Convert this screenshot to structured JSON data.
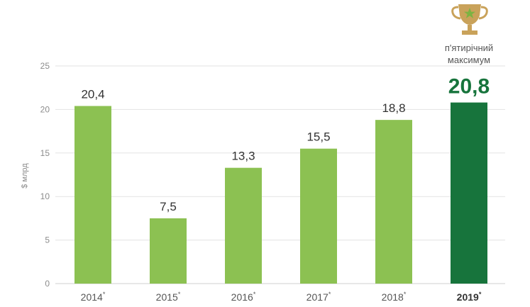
{
  "chart_data": {
    "type": "bar",
    "categories": [
      "2014",
      "2015",
      "2016",
      "2017",
      "2018",
      "2019"
    ],
    "category_marks": [
      "*",
      "*",
      "*",
      "*",
      "*",
      "*"
    ],
    "values": [
      20.4,
      7.5,
      13.3,
      15.5,
      18.8,
      20.8
    ],
    "value_labels": [
      "20,4",
      "7,5",
      "13,3",
      "15,5",
      "18,8",
      "20,8"
    ],
    "highlight_index": 5,
    "ylabel": "$ млрд",
    "ylim": [
      0,
      25
    ],
    "yticks": [
      0,
      5,
      10,
      15,
      20,
      25
    ],
    "grid": true,
    "annotation": {
      "line1": "п'ятирічний",
      "line2": "максимум",
      "icon": "trophy-star-icon"
    },
    "colors": {
      "bar": "#8cc152",
      "highlight_bar": "#17743c",
      "highlight_text": "#17743c",
      "grid": "#e3e3e3",
      "trophy": "#c9a25a"
    }
  }
}
